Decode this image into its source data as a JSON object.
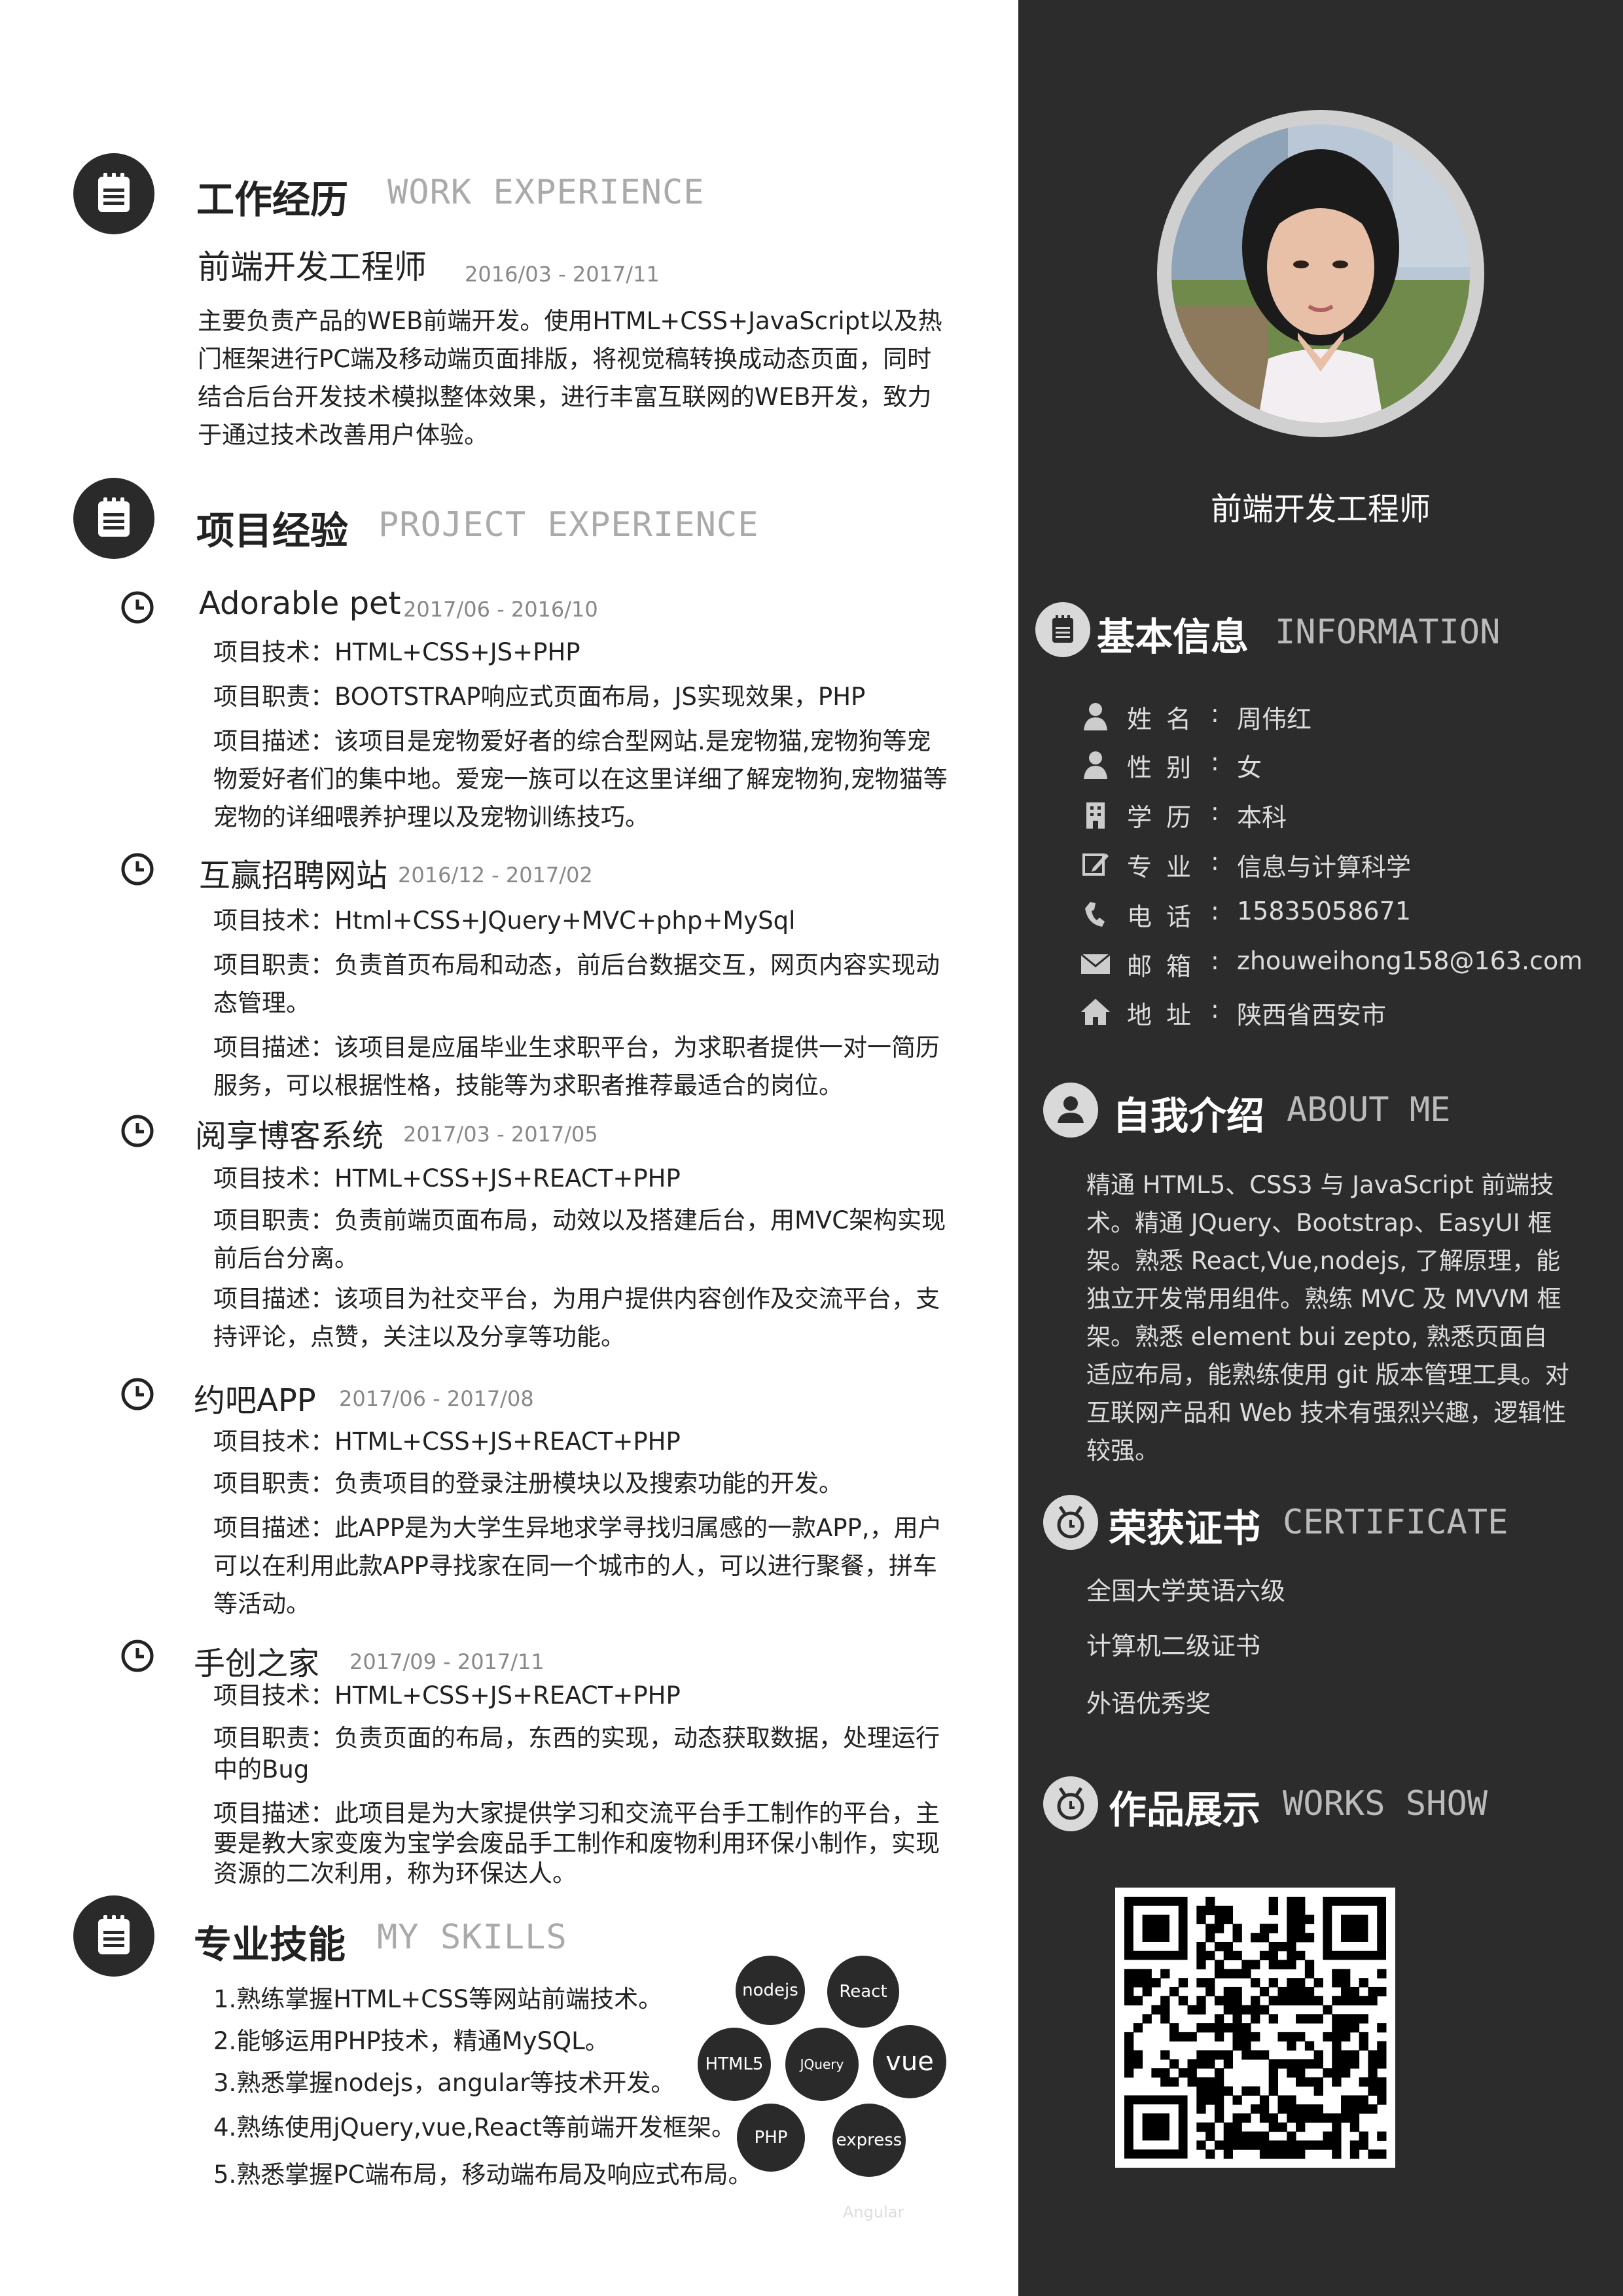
{
  "work": {
    "title": "工作经历",
    "title_en": "WORK EXPERIENCE",
    "job_title": "前端开发工程师",
    "job_date": "2016/03 -  2017/11",
    "description": "主要负责产品的WEB前端开发。使用HTML+CSS+JavaScript以及热门框架进行PC端及移动端页面排版，将视觉稿转换成动态页面，同时结合后台开发技术模拟整体效果，进行丰富互联网的WEB开发，致力于通过技术改善用户体验。"
  },
  "projects": {
    "title": "项目经验",
    "title_en": "PROJECT EXPERIENCE",
    "items": [
      {
        "name": "Adorable pet",
        "date": "2017/06 -  2016/10",
        "tech": "项目技术：HTML+CSS+JS+PHP",
        "duty": "项目职责：BOOTSTRAP响应式页面布局，JS实现效果，PHP",
        "desc": "项目描述：该项目是宠物爱好者的综合型网站.是宠物猫,宠物狗等宠物爱好者们的集中地。爱宠一族可以在这里详细了解宠物狗,宠物猫等宠物的详细喂养护理以及宠物训练技巧。"
      },
      {
        "name": "互赢招聘网站",
        "date": "2016/12 -  2017/02",
        "tech": "项目技术：Html+CSS+JQuery+MVC+php+MySql",
        "duty": "项目职责：负责首页布局和动态，前后台数据交互，网页内容实现动态管理。",
        "desc": "项目描述：该项目是应届毕业生求职平台，为求职者提供一对一简历服务，可以根据性格，技能等为求职者推荐最适合的岗位。"
      },
      {
        "name": "阅享博客系统",
        "date": "2017/03 -  2017/05",
        "tech": "项目技术：HTML+CSS+JS+REACT+PHP",
        "duty": "项目职责：负责前端页面布局，动效以及搭建后台，用MVC架构实现前后台分离。",
        "desc": "项目描述：该项目为社交平台，为用户提供内容创作及交流平台，支持评论，点赞，关注以及分享等功能。"
      },
      {
        "name": "约吧APP",
        "date": "2017/06 -  2017/08",
        "tech": "项目技术：HTML+CSS+JS+REACT+PHP",
        "duty": "项目职责：负责项目的登录注册模块以及搜索功能的开发。",
        "desc": "项目描述：此APP是为大学生异地求学寻找归属感的一款APP,，用户可以在利用此款APP寻找家在同一个城市的人，可以进行聚餐，拼车等活动。"
      },
      {
        "name": "手创之家",
        "date": "2017/09 -  2017/11",
        "tech": "项目技术：HTML+CSS+JS+REACT+PHP",
        "duty": "项目职责：负责页面的布局，东西的实现，动态获取数据，处理运行中的Bug",
        "desc": "项目描述：此项目是为大家提供学习和交流平台手工制作的平台，主要是教大家变废为宝学会废品手工制作和废物利用环保小制作，实现资源的二次利用，称为环保达人。"
      }
    ]
  },
  "skills": {
    "title": "专业技能",
    "title_en": "MY SKILLS",
    "items": [
      "1.熟练掌握HTML+CSS等网站前端技术。",
      "2.能够运用PHP技术，精通MySQL。",
      "3.熟悉掌握nodejs，angular等技术开发。",
      "4.熟练使用jQuery,vue,React等前端开发框架。",
      "5.熟悉掌握PC端布局，移动端布局及响应式布局。"
    ],
    "bubbles": {
      "nodejs": "nodejs",
      "react": "React",
      "html5": "HTML5",
      "jquery": "JQuery",
      "vue": "vue",
      "php": "PHP",
      "express": "express",
      "angular": "Angular"
    }
  },
  "profile": {
    "job_title": "前端开发工程师"
  },
  "info": {
    "title": "基本信息",
    "title_en": "INFORMATION",
    "rows": [
      {
        "label": "姓名",
        "value": "周伟红",
        "icon": "user-icon"
      },
      {
        "label": "性别",
        "value": "女",
        "icon": "user-icon"
      },
      {
        "label": "学历",
        "value": "本科",
        "icon": "building-icon"
      },
      {
        "label": "专业",
        "value": "信息与计算科学",
        "icon": "edit-icon"
      },
      {
        "label": "电话",
        "value": "15835058671",
        "icon": "phone-icon"
      },
      {
        "label": "邮箱",
        "value": "zhouweihong158@163.com",
        "icon": "mail-icon"
      },
      {
        "label": "地址",
        "value": "陕西省西安市",
        "icon": "home-icon"
      }
    ],
    "colon": ":"
  },
  "about": {
    "title": "自我介绍",
    "title_en": "ABOUT ME",
    "text": "精通 HTML5、CSS3 与 JavaScript 前端技术。精通 JQuery、Bootstrap、EasyUI 框架。熟悉 React,Vue,nodejs, 了解原理，能独立开发常用组件。熟练 MVC 及 MVVM 框架。熟悉 element bui zepto, 熟悉页面自适应布局，能熟练使用 git 版本管理工具。对互联网产品和 Web 技术有强烈兴趣，逻辑性较强。"
  },
  "certificates": {
    "title": "荣获证书",
    "title_en": "CERTIFICATE",
    "items": [
      "全国大学英语六级",
      "计算机二级证书",
      "外语优秀奖"
    ]
  },
  "works": {
    "title": "作品展示",
    "title_en": "WORKS SHOW"
  },
  "colors": {
    "sidebar_bg": "#2c2c2c",
    "icon_dark": "#2a2a2a",
    "english_gray": "#aaaaaa"
  }
}
